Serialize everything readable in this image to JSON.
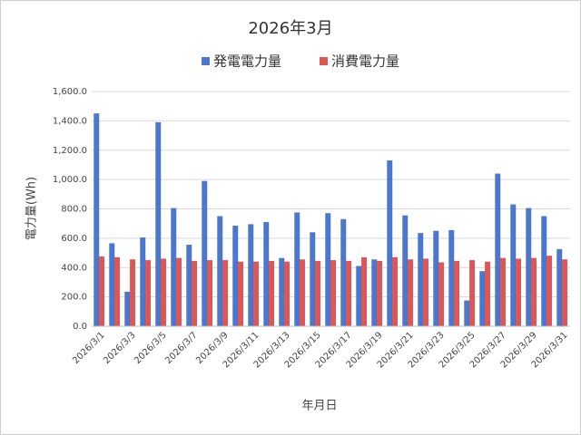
{
  "chart_data": {
    "type": "bar",
    "title": "2026年3月",
    "categories": [
      "2026/3/1",
      null,
      "2026/3/3",
      null,
      "2026/3/5",
      null,
      "2026/3/7",
      null,
      "2026/3/9",
      null,
      "2026/3/11",
      null,
      "2026/3/13",
      null,
      "2026/3/15",
      null,
      "2026/3/17",
      null,
      "2026/3/19",
      null,
      "2026/3/21",
      null,
      "2026/3/23",
      null,
      "2026/3/25",
      null,
      "2026/3/27",
      null,
      "2026/3/29",
      null,
      "2026/3/31"
    ],
    "series": [
      {
        "name": "発電電力量",
        "color": "#4a78cf",
        "values": [
          1450,
          565,
          235,
          605,
          1390,
          805,
          555,
          990,
          750,
          685,
          695,
          710,
          465,
          775,
          640,
          770,
          730,
          410,
          455,
          1130,
          755,
          635,
          650,
          655,
          175,
          375,
          1040,
          830,
          805,
          750,
          525
        ]
      },
      {
        "name": "消費電力量",
        "color": "#e05555",
        "values": [
          475,
          470,
          455,
          450,
          460,
          465,
          445,
          450,
          450,
          440,
          440,
          445,
          440,
          455,
          445,
          450,
          445,
          470,
          445,
          470,
          455,
          460,
          435,
          445,
          450,
          440,
          465,
          460,
          465,
          480,
          455
        ]
      }
    ],
    "y_label": "電力量(Wh)",
    "x_label": "年月日",
    "ylim": [
      0,
      1600
    ],
    "yticks": [
      {
        "value": 0,
        "label": "0.0"
      },
      {
        "value": 200,
        "label": "200.0"
      },
      {
        "value": 400,
        "label": "400.0"
      },
      {
        "value": 600,
        "label": "600.0"
      },
      {
        "value": 800,
        "label": "800.0"
      },
      {
        "value": 1000,
        "label": "1,000.0"
      },
      {
        "value": 1200,
        "label": "1,200.0"
      },
      {
        "value": 1400,
        "label": "1,400.0"
      },
      {
        "value": 1600,
        "label": "1,600.0"
      }
    ],
    "grid": true,
    "legend": "top"
  }
}
